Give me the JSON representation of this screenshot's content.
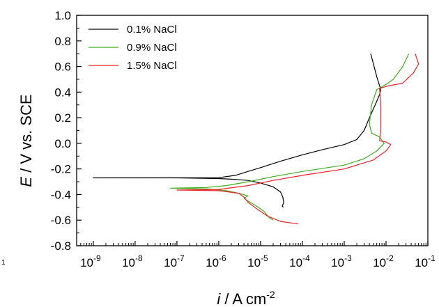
{
  "chart_data": {
    "type": "line",
    "xlabel_italic": "i",
    "xlabel_unit": "A cm",
    "xlabel_sup": "-2",
    "ylabel_italic": "E",
    "ylabel_rest": "V vs. SCE",
    "x_scale": "log",
    "xlim": [
      4e-10,
      0.1
    ],
    "ylim": [
      -0.8,
      1.0
    ],
    "x_tick_exponents": [
      "-9",
      "-8",
      "-7",
      "-6",
      "-5",
      "-4",
      "-3",
      "-2",
      "-1"
    ],
    "y_ticks": [
      "1.0",
      "0.8",
      "0.6",
      "0.4",
      "0.2",
      "0.0",
      "-0.2",
      "-0.4",
      "-0.6",
      "-0.8"
    ],
    "legend_position": "top-left",
    "grid": false,
    "stray_label": "1",
    "series": [
      {
        "name": "0.1% NaCl",
        "color": "#000000",
        "points": [
          [
            3.5e-05,
            -0.5
          ],
          [
            3.3e-05,
            -0.49
          ],
          [
            3.6e-05,
            -0.46
          ],
          [
            3.4e-05,
            -0.42
          ],
          [
            3e-05,
            -0.38
          ],
          [
            2e-05,
            -0.34
          ],
          [
            1e-05,
            -0.31
          ],
          [
            5e-06,
            -0.29
          ],
          [
            2e-06,
            -0.28
          ],
          [
            1e-06,
            -0.275
          ],
          [
            1e-07,
            -0.27
          ],
          [
            1e-09,
            -0.27
          ],
          [
            1e-06,
            -0.268
          ],
          [
            2.5e-06,
            -0.25
          ],
          [
            5e-06,
            -0.22
          ],
          [
            1e-05,
            -0.19
          ],
          [
            3e-05,
            -0.14
          ],
          [
            0.0001,
            -0.09
          ],
          [
            0.0003,
            -0.05
          ],
          [
            0.001,
            -0.01
          ],
          [
            0.002,
            0.03
          ],
          [
            0.003,
            0.1
          ],
          [
            0.004,
            0.2
          ],
          [
            0.0055,
            0.3
          ],
          [
            0.007,
            0.38
          ],
          [
            0.0075,
            0.42
          ],
          [
            0.006,
            0.52
          ],
          [
            0.005,
            0.62
          ],
          [
            0.0043,
            0.7
          ]
        ]
      },
      {
        "name": "0.9% NaCl",
        "color": "#3faf1f",
        "points": [
          [
            2e-05,
            -0.6
          ],
          [
            1.6e-05,
            -0.58
          ],
          [
            1.2e-05,
            -0.53
          ],
          [
            8e-06,
            -0.49
          ],
          [
            5e-06,
            -0.45
          ],
          [
            4e-06,
            -0.43
          ],
          [
            5e-06,
            -0.41
          ],
          [
            3e-06,
            -0.39
          ],
          [
            1.5e-06,
            -0.37
          ],
          [
            5e-07,
            -0.355
          ],
          [
            7e-08,
            -0.35
          ],
          [
            5e-07,
            -0.345
          ],
          [
            1.5e-06,
            -0.33
          ],
          [
            5e-06,
            -0.3
          ],
          [
            2e-05,
            -0.26
          ],
          [
            0.0001,
            -0.22
          ],
          [
            0.001,
            -0.17
          ],
          [
            0.003,
            -0.12
          ],
          [
            0.006,
            -0.06
          ],
          [
            0.009,
            0.0
          ],
          [
            0.007,
            0.05
          ],
          [
            0.0045,
            0.08
          ],
          [
            0.004,
            0.15
          ],
          [
            0.0045,
            0.3
          ],
          [
            0.006,
            0.42
          ],
          [
            0.01,
            0.46
          ],
          [
            0.015,
            0.5
          ],
          [
            0.025,
            0.6
          ],
          [
            0.035,
            0.7
          ]
        ]
      },
      {
        "name": "1.5% NaCl",
        "color": "#ee2222",
        "points": [
          [
            8e-05,
            -0.63
          ],
          [
            3e-05,
            -0.61
          ],
          [
            1.5e-05,
            -0.57
          ],
          [
            8e-06,
            -0.51
          ],
          [
            5e-06,
            -0.46
          ],
          [
            4e-06,
            -0.42
          ],
          [
            3e-06,
            -0.39
          ],
          [
            1e-06,
            -0.37
          ],
          [
            1e-07,
            -0.365
          ],
          [
            1e-06,
            -0.36
          ],
          [
            5e-06,
            -0.33
          ],
          [
            2e-05,
            -0.29
          ],
          [
            0.0001,
            -0.25
          ],
          [
            0.001,
            -0.2
          ],
          [
            0.005,
            -0.13
          ],
          [
            0.01,
            -0.06
          ],
          [
            0.013,
            -0.01
          ],
          [
            0.01,
            0.01
          ],
          [
            0.007,
            0.02
          ],
          [
            0.0075,
            0.1
          ],
          [
            0.0075,
            0.3
          ],
          [
            0.007,
            0.43
          ],
          [
            0.012,
            0.45
          ],
          [
            0.025,
            0.47
          ],
          [
            0.045,
            0.55
          ],
          [
            0.06,
            0.62
          ],
          [
            0.05,
            0.7
          ]
        ]
      }
    ]
  }
}
